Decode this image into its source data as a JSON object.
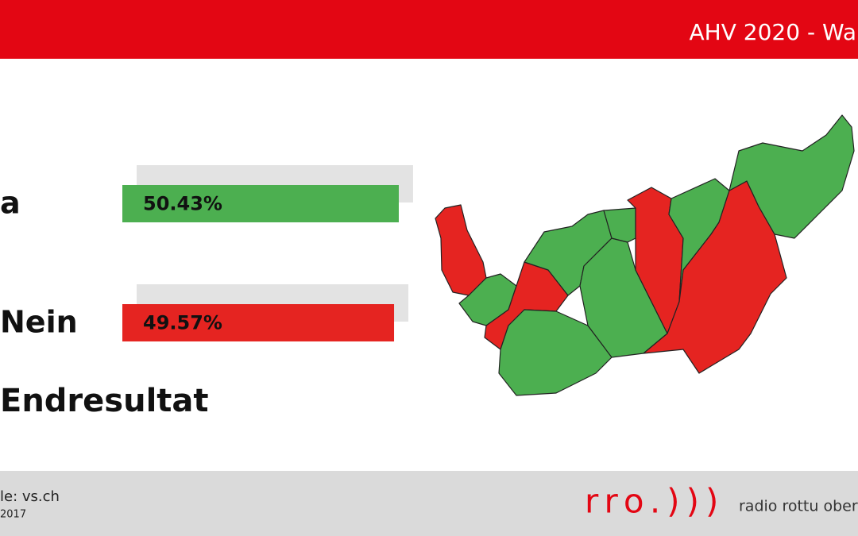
{
  "header": {
    "title": "AHV 2020 - Wa"
  },
  "chart_data": {
    "type": "bar",
    "orientation": "horizontal",
    "categories": [
      "a",
      "Nein"
    ],
    "values": [
      50.43,
      49.57
    ],
    "value_labels": [
      "50.43%",
      "49.57%"
    ],
    "colors": [
      "#4caf50",
      "#e52421"
    ],
    "subtitle": "Endresultat"
  },
  "footer": {
    "source": "le: vs.ch",
    "date": "2017",
    "logo": "rro.)))",
    "station": "radio rottu oberw"
  }
}
